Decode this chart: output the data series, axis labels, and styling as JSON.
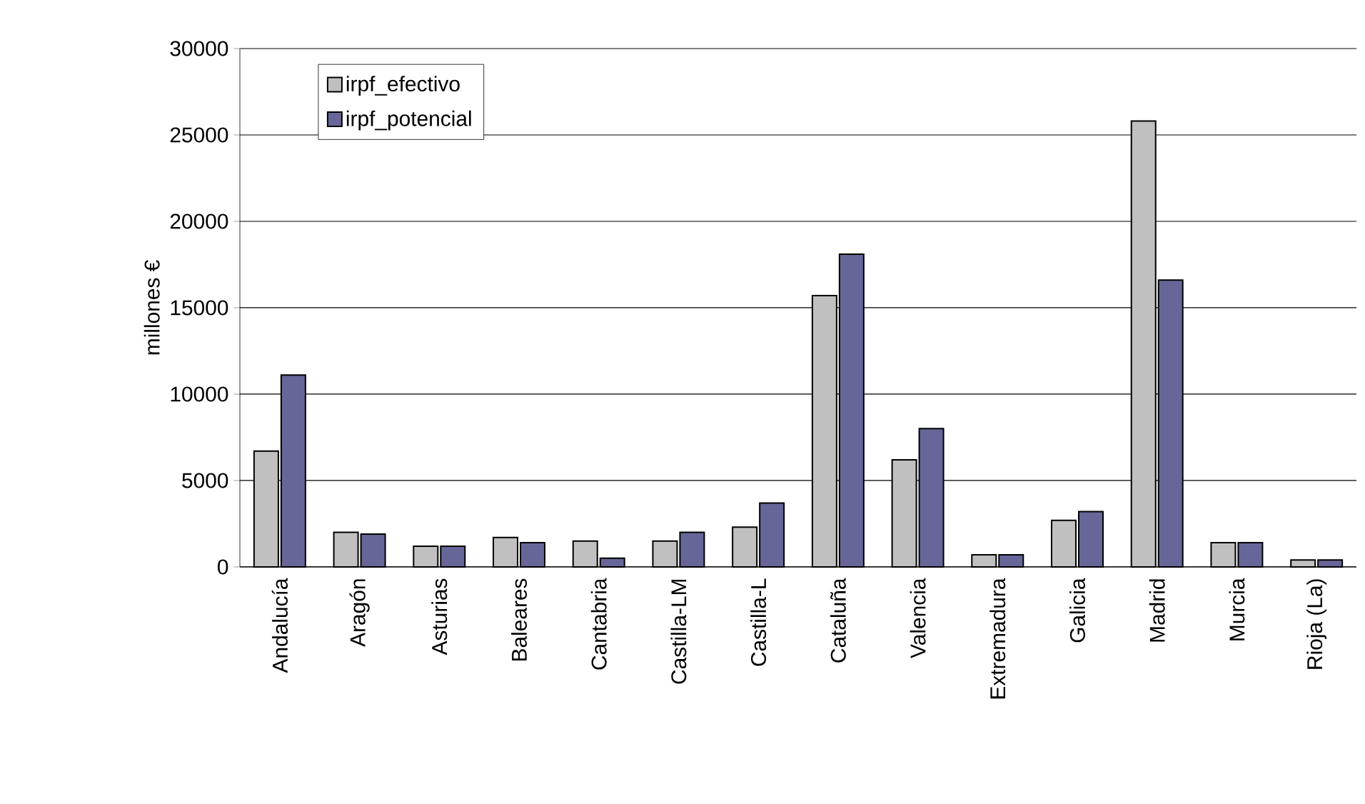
{
  "chart_data": {
    "type": "bar",
    "ylabel": "millones €",
    "categories": [
      "Andalucía",
      "Aragón",
      "Asturias",
      "Baleares",
      "Cantabria",
      "Castilla-LM",
      "Castilla-L",
      "Cataluña",
      "Valencia",
      "Extremadura",
      "Galicia",
      "Madrid",
      "Murcia",
      "Rioja (La)"
    ],
    "series": [
      {
        "name": "irpf_efectivo",
        "color": "#c0c0c0",
        "values": [
          6700,
          2000,
          1200,
          1700,
          1500,
          1500,
          2300,
          15700,
          6200,
          700,
          2700,
          25800,
          1400,
          400
        ]
      },
      {
        "name": "irpf_potencial",
        "color": "#666699",
        "values": [
          11100,
          1900,
          1200,
          1400,
          500,
          2000,
          3700,
          18100,
          8000,
          700,
          3200,
          16600,
          1400,
          400
        ]
      }
    ],
    "ylim": [
      0,
      30000
    ],
    "yticks": [
      0,
      5000,
      10000,
      15000,
      20000,
      25000,
      30000
    ],
    "grid": "y",
    "legend": "top left"
  }
}
